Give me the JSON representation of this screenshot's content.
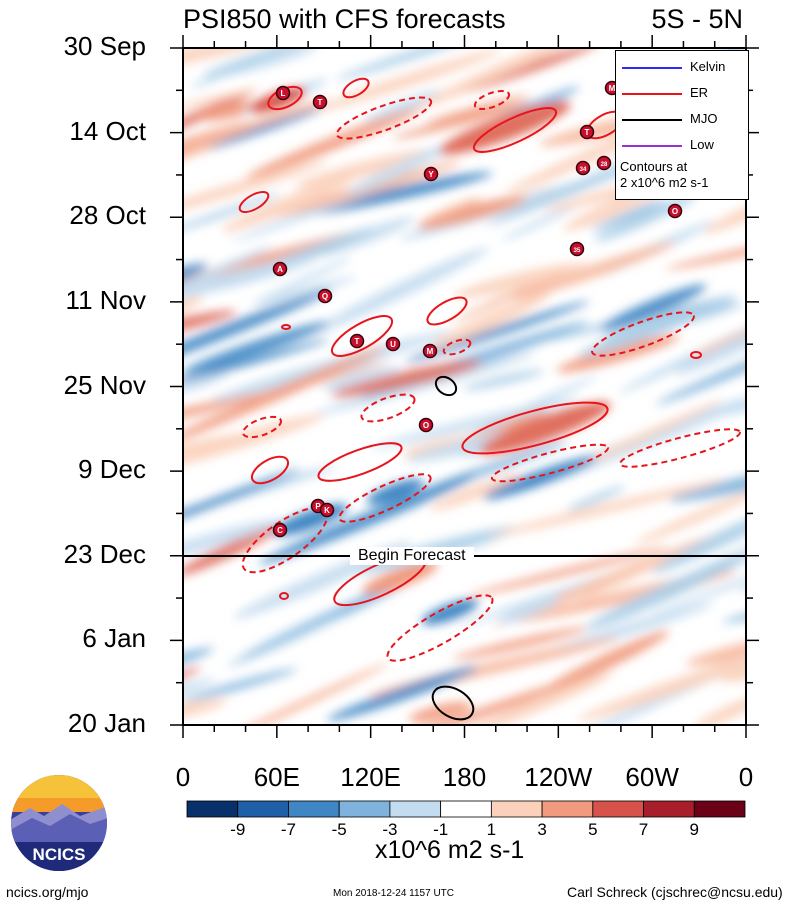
{
  "header": {
    "title": "PSI850 with CFS forecasts",
    "region": "5S - 5N"
  },
  "chart_data": {
    "type": "heatmap",
    "title": "PSI850 with CFS forecasts",
    "subtitle": "5S - 5N",
    "y_tick_labels": [
      "30 Sep",
      "14 Oct",
      "28 Oct",
      "11 Nov",
      "25 Nov",
      "9 Dec",
      "23 Dec",
      "6 Jan",
      "20 Jan"
    ],
    "y_range": [
      "30 Sep",
      "20 Jan"
    ],
    "x_tick_labels": [
      "0",
      "60E",
      "120E",
      "180",
      "120W",
      "60W",
      "0"
    ],
    "x_range_degrees": [
      0,
      360
    ],
    "forecast_start": "23 Dec",
    "forecast_label": "Begin Forecast",
    "colorbar": {
      "levels": [
        -9,
        -7,
        -5,
        -3,
        -1,
        1,
        3,
        5,
        7,
        9
      ],
      "colors": [
        "#08306b",
        "#1f5fa8",
        "#3f86c4",
        "#7fb2dc",
        "#c3dcef",
        "#ffffff",
        "#fbd1bb",
        "#f19a7d",
        "#d6524a",
        "#a81f2b",
        "#6b0016"
      ],
      "units": "x10^6 m2 s-1"
    },
    "legend": {
      "entries": [
        {
          "name": "Kelvin",
          "color": "#2b2bff"
        },
        {
          "name": "ER",
          "color": "#e8141c"
        },
        {
          "name": "MJO",
          "color": "#000000"
        },
        {
          "name": "Low",
          "color": "#9932cc"
        }
      ],
      "note_line1": "Contours at",
      "note_line2": "2 x10^6 m2 s-1",
      "placement": "top-right"
    },
    "storm_markers": [
      "L",
      "T",
      "M",
      "T",
      "28",
      "Y",
      "34",
      "O",
      "A",
      "35",
      "Q",
      "T",
      "U",
      "M",
      "O",
      "P",
      "K",
      "C"
    ]
  },
  "footer": {
    "logo_text": "NCICS",
    "website": "ncics.org/mjo",
    "timestamp": "Mon 2018-12-24 1157 UTC",
    "author": "Carl Schreck (cjschrec@ncsu.edu)"
  }
}
